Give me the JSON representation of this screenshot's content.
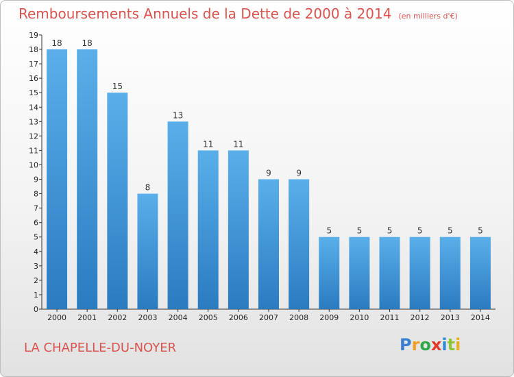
{
  "title": "Remboursements Annuels de la Dette de 2000 à 2014",
  "unit": "(en milliers d'€)",
  "commune": "LA CHAPELLE-DU-NOYER",
  "logo": {
    "letters": [
      "P",
      "r",
      "o",
      "x",
      "i",
      "t",
      "i"
    ],
    "colors": [
      "#3a7fd0",
      "#f0a020",
      "#2ea84a",
      "#e03a2a",
      "#2e8ad6",
      "#8cc43a",
      "#e8b020"
    ]
  },
  "colors": {
    "bar_top": "#5aafea",
    "bar_bottom": "#2a7bc0",
    "title": "#d9534f"
  },
  "chart_data": {
    "type": "bar",
    "categories": [
      "2000",
      "2001",
      "2002",
      "2003",
      "2004",
      "2005",
      "2006",
      "2007",
      "2008",
      "2009",
      "2010",
      "2011",
      "2012",
      "2013",
      "2014"
    ],
    "values": [
      18,
      18,
      15,
      8,
      13,
      11,
      11,
      9,
      9,
      5,
      5,
      5,
      5,
      5,
      5
    ],
    "data_labels": [
      "18",
      "18",
      "15",
      "8",
      "13",
      "11",
      "11",
      "9",
      "9",
      "5",
      "5",
      "5",
      "5",
      "5",
      "5"
    ],
    "yticks": [
      "0",
      "1",
      "2",
      "3",
      "4",
      "5",
      "6",
      "7",
      "8",
      "9",
      "10",
      "11",
      "12",
      "13",
      "14",
      "15",
      "16",
      "17",
      "18",
      "19"
    ],
    "ylim": [
      0,
      19
    ],
    "grid": false
  }
}
